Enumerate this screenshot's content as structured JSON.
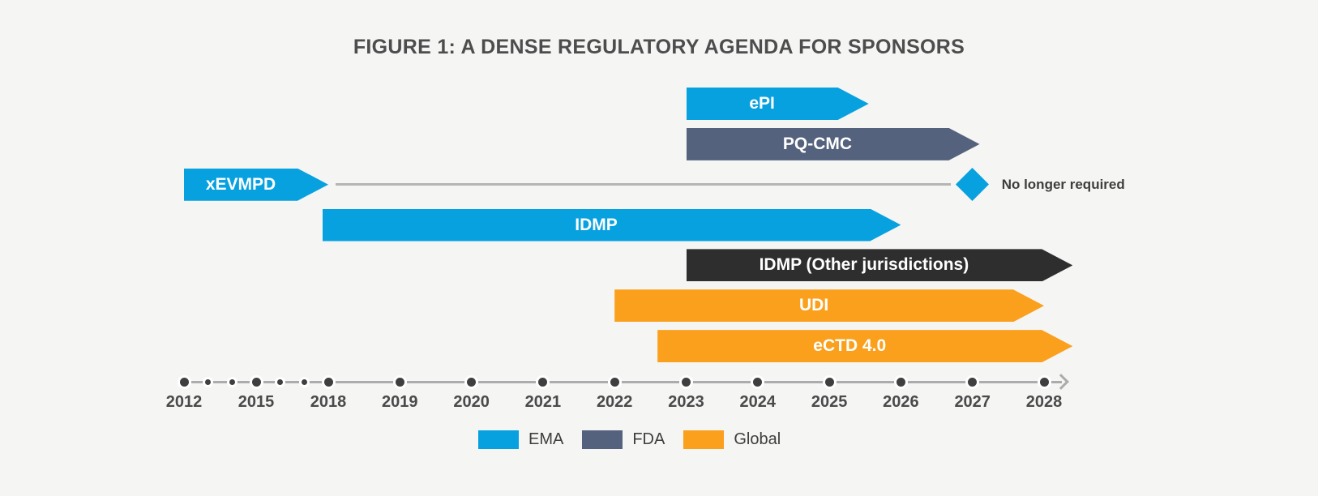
{
  "title": "FIGURE 1: A DENSE REGULATORY AGENDA FOR SPONSORS",
  "colors": {
    "background": "#F5F5F4",
    "ema": "#07A1E0",
    "fda": "#54627D",
    "global": "#FAA01D",
    "other": "#2E2E2E",
    "axis_line": "#ACACAC",
    "dot": "#3F3F3F",
    "annotation_line": "#B5B5B5",
    "title_text": "#4D4D4D",
    "year_text": "#4A4A4A",
    "note_text": "#3E3E3E"
  },
  "legend": [
    {
      "label": "EMA",
      "color_key": "ema"
    },
    {
      "label": "FDA",
      "color_key": "fda"
    },
    {
      "label": "Global",
      "color_key": "global"
    }
  ],
  "chart_data": {
    "type": "timeline",
    "title": "FIGURE 1: A DENSE REGULATORY AGENDA FOR SPONSORS",
    "axis": {
      "major_years": [
        2012,
        2015,
        2018,
        2019,
        2020,
        2021,
        2022,
        2023,
        2024,
        2025,
        2026,
        2027,
        2028
      ],
      "minor_years": [
        2013,
        2014,
        2016,
        2017
      ],
      "compressed_before": 2018,
      "arrow_at_end": true
    },
    "bars": [
      {
        "label": "ePI",
        "agency": "EMA",
        "color_key": "ema",
        "start": 2023,
        "end": 2025.55,
        "row": 0
      },
      {
        "label": "PQ-CMC",
        "agency": "FDA",
        "color_key": "fda",
        "start": 2023,
        "end": 2027.1,
        "row": 1
      },
      {
        "label": "xEVMPD",
        "agency": "EMA",
        "color_key": "ema",
        "start": 2012,
        "end": 2018,
        "row": 2
      },
      {
        "label": "IDMP",
        "agency": "EMA",
        "color_key": "ema",
        "start": 2017.75,
        "end": 2026,
        "row": 3
      },
      {
        "label": "IDMP (Other jurisdictions)",
        "agency": "Other",
        "color_key": "other",
        "start": 2023,
        "end": 2028.4,
        "row": 4
      },
      {
        "label": "UDI",
        "agency": "Global",
        "color_key": "global",
        "start": 2022,
        "end": 2028,
        "row": 5
      },
      {
        "label": "eCTD 4.0",
        "agency": "Global",
        "color_key": "global",
        "start": 2022.6,
        "end": 2028.4,
        "row": 6
      }
    ],
    "annotation": {
      "attached_to": "xEVMPD",
      "line_start": 2018.1,
      "line_end": 2026.7,
      "marker": "diamond",
      "marker_year": 2027,
      "marker_color_key": "ema",
      "label": "No longer required"
    }
  }
}
